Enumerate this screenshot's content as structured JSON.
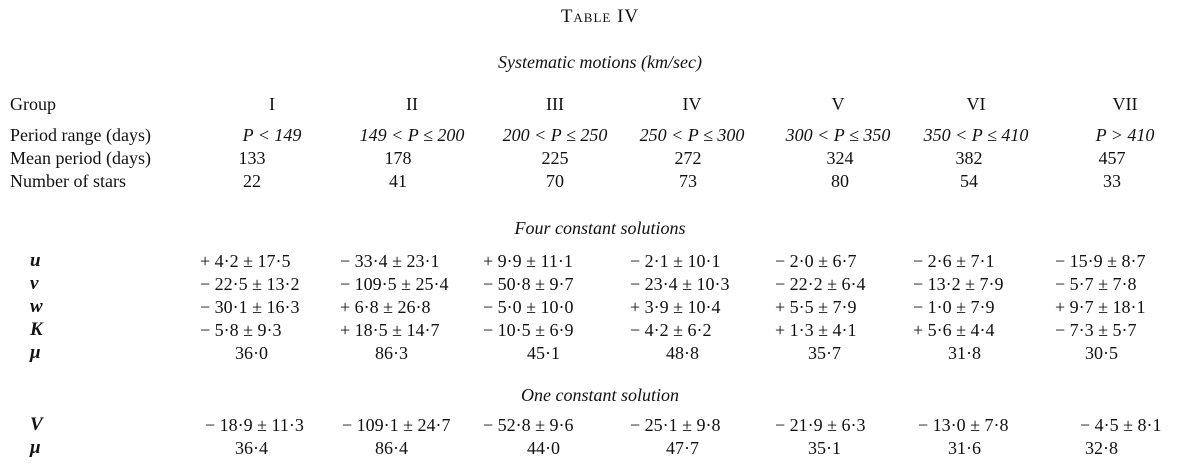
{
  "title": "Table IV",
  "subtitle": "Systematic motions (km/sec)",
  "header": {
    "label": "Group",
    "groups": [
      "I",
      "II",
      "III",
      "IV",
      "V",
      "VI",
      "VII"
    ]
  },
  "info_rows": [
    {
      "label": "Period range (days)",
      "values": [
        "P < 149",
        "149 < P ≤ 200",
        "200 < P ≤ 250",
        "250 < P ≤ 300",
        "300 < P ≤ 350",
        "350 < P ≤ 410",
        "P > 410"
      ]
    },
    {
      "label": "Mean period (days)",
      "values": [
        "133",
        "178",
        "225",
        "272",
        "324",
        "382",
        "457"
      ]
    },
    {
      "label": "Number of stars",
      "values": [
        "22",
        "41",
        "70",
        "73",
        "80",
        "54",
        "33"
      ]
    }
  ],
  "four_constant": {
    "title": "Four constant solutions",
    "rows": [
      {
        "label": "u",
        "values": [
          "+ 4·2 ± 17·5",
          "− 33·4 ± 23·1",
          "+ 9·9 ± 11·1",
          "− 2·1 ± 10·1",
          "− 2·0 ± 6·7",
          "− 2·6 ± 7·1",
          "− 15·9 ± 8·7"
        ]
      },
      {
        "label": "v",
        "values": [
          "− 22·5 ± 13·2",
          "− 109·5 ± 25·4",
          "− 50·8 ± 9·7",
          "− 23·4 ± 10·3",
          "− 22·2 ± 6·4",
          "− 13·2 ± 7·9",
          "− 5·7 ± 7·8"
        ]
      },
      {
        "label": "w",
        "values": [
          "− 30·1 ± 16·3",
          "+ 6·8 ± 26·8",
          "− 5·0 ± 10·0",
          "+ 3·9 ± 10·4",
          "+ 5·5 ± 7·9",
          "− 1·0 ± 7·9",
          "+ 9·7 ± 18·1"
        ]
      },
      {
        "label": "K",
        "values": [
          "− 5·8 ± 9·3",
          "+ 18·5 ± 14·7",
          "− 10·5 ± 6·9",
          "− 4·2 ± 6·2",
          "+ 1·3 ± 4·1",
          "+ 5·6 ± 4·4",
          "− 7·3 ± 5·7"
        ]
      },
      {
        "label": "μ",
        "values": [
          "36·0",
          "86·3",
          "45·1",
          "48·8",
          "35·7",
          "31·8",
          "30·5"
        ]
      }
    ]
  },
  "one_constant": {
    "title": "One constant solution",
    "rows": [
      {
        "label": "V",
        "values": [
          "− 18·9 ± 11·3",
          "− 109·1 ± 24·7",
          "− 52·8 ± 9·6",
          "− 25·1 ± 9·8",
          "− 21·9 ± 6·3",
          "− 13·0 ± 7·8",
          "− 4·5 ± 8·1"
        ]
      },
      {
        "label": "μ",
        "values": [
          "36·4",
          "86·4",
          "44·0",
          "47·7",
          "35·1",
          "31·6",
          "32·8"
        ]
      }
    ]
  }
}
